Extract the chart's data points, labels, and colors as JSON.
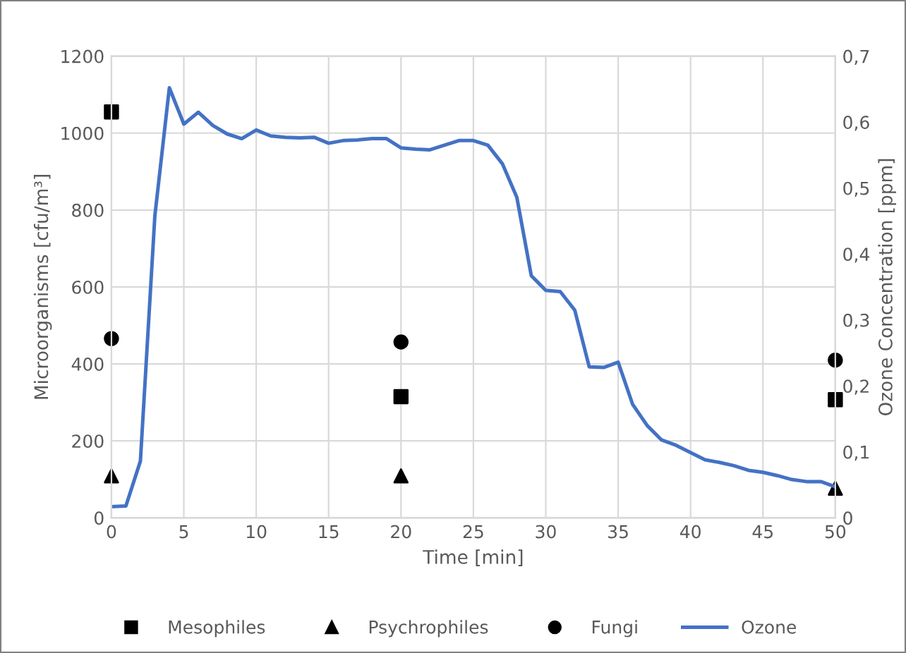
{
  "chart_data": {
    "type": "scatter",
    "xlabel": "Time [min]",
    "ylabel": "Microorganisms [cfu/m³]",
    "y2label": "Ozone Concentration [ppm]",
    "xlim": [
      0,
      50
    ],
    "xticks": [
      0,
      5,
      10,
      15,
      20,
      25,
      30,
      35,
      40,
      45,
      50
    ],
    "ylim": [
      0,
      1200
    ],
    "yticks": [
      0,
      200,
      400,
      600,
      800,
      1000,
      1200
    ],
    "y2lim": [
      0,
      0.7
    ],
    "y2ticks": [
      {
        "value": 0,
        "label": "0"
      },
      {
        "value": 0.1,
        "label": "0,1"
      },
      {
        "value": 0.2,
        "label": "0,2"
      },
      {
        "value": 0.3,
        "label": "0,3"
      },
      {
        "value": 0.4,
        "label": "0,4"
      },
      {
        "value": 0.5,
        "label": "0,5"
      },
      {
        "value": 0.6,
        "label": "0,6"
      },
      {
        "value": 0.7,
        "label": "0,7"
      }
    ],
    "grid": true,
    "legend": "bottom",
    "series": [
      {
        "name": "Mesophiles",
        "marker": "square",
        "color": "#000000",
        "x": [
          0,
          20,
          50
        ],
        "values": [
          1055,
          315,
          307
        ]
      },
      {
        "name": "Psychrophiles",
        "marker": "triangle",
        "color": "#000000",
        "x": [
          0,
          20,
          50
        ],
        "values": [
          109,
          109,
          77
        ]
      },
      {
        "name": "Fungi",
        "marker": "circle",
        "color": "#000000",
        "x": [
          0,
          20,
          50
        ],
        "values": [
          466,
          457,
          410
        ]
      },
      {
        "name": "Ozone",
        "type": "line",
        "axis": "y2",
        "marker": "none",
        "line_style": "solid",
        "color": "#4472c4",
        "x": [
          0,
          1,
          2,
          3,
          4,
          5,
          6,
          7,
          8,
          9,
          10,
          11,
          12,
          13,
          14,
          15,
          16,
          17,
          18,
          19,
          20,
          21,
          22,
          23,
          24,
          25,
          26,
          27,
          28,
          29,
          30,
          31,
          32,
          33,
          34,
          35,
          36,
          37,
          38,
          39,
          40,
          41,
          42,
          43,
          44,
          45,
          46,
          47,
          48,
          49,
          50
        ],
        "values": [
          0.017,
          0.018,
          0.086,
          0.458,
          0.652,
          0.597,
          0.615,
          0.595,
          0.582,
          0.575,
          0.588,
          0.579,
          0.577,
          0.576,
          0.577,
          0.568,
          0.572,
          0.573,
          0.575,
          0.575,
          0.561,
          0.559,
          0.558,
          0.565,
          0.572,
          0.572,
          0.565,
          0.537,
          0.486,
          0.367,
          0.345,
          0.343,
          0.315,
          0.229,
          0.228,
          0.236,
          0.172,
          0.14,
          0.118,
          0.11,
          0.099,
          0.088,
          0.084,
          0.079,
          0.072,
          0.069,
          0.064,
          0.058,
          0.055,
          0.055,
          0.047
        ]
      }
    ]
  }
}
